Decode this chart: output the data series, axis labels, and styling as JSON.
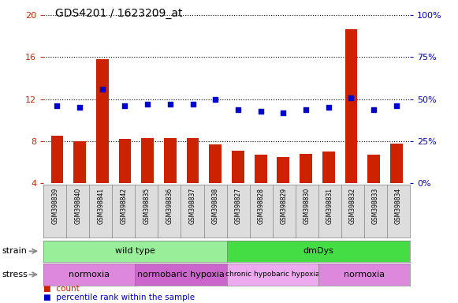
{
  "title": "GDS4201 / 1623209_at",
  "samples": [
    "GSM398839",
    "GSM398840",
    "GSM398841",
    "GSM398842",
    "GSM398835",
    "GSM398836",
    "GSM398837",
    "GSM398838",
    "GSM398827",
    "GSM398828",
    "GSM398829",
    "GSM398830",
    "GSM398831",
    "GSM398832",
    "GSM398833",
    "GSM398834"
  ],
  "counts": [
    8.5,
    8.0,
    15.8,
    8.2,
    8.3,
    8.3,
    8.3,
    7.7,
    7.1,
    6.7,
    6.5,
    6.8,
    7.0,
    18.7,
    6.7,
    7.8
  ],
  "percentile_ranks": [
    46,
    45,
    56,
    46,
    47,
    47,
    47,
    50,
    44,
    43,
    42,
    44,
    45,
    51,
    44,
    46
  ],
  "count_ylim": [
    4,
    20
  ],
  "percentile_ylim": [
    0,
    100
  ],
  "count_yticks": [
    4,
    8,
    12,
    16,
    20
  ],
  "percentile_yticks": [
    0,
    25,
    50,
    75,
    100
  ],
  "count_color": "#cc2200",
  "percentile_color": "#0000cc",
  "bar_width": 0.55,
  "strain_groups": [
    {
      "label": "wild type",
      "start": 0,
      "end": 8,
      "color": "#99ee99"
    },
    {
      "label": "dmDys",
      "start": 8,
      "end": 16,
      "color": "#44dd44"
    }
  ],
  "stress_groups": [
    {
      "label": "normoxia",
      "start": 0,
      "end": 4,
      "color": "#dd88dd"
    },
    {
      "label": "normobaric hypoxia",
      "start": 4,
      "end": 8,
      "color": "#cc66cc"
    },
    {
      "label": "chronic hypobaric hypoxia",
      "start": 8,
      "end": 12,
      "color": "#eeaaee"
    },
    {
      "label": "normoxia",
      "start": 12,
      "end": 16,
      "color": "#dd88dd"
    }
  ],
  "grid_color": "black",
  "background_color": "#ffffff",
  "tick_bg_color": "#dddddd"
}
